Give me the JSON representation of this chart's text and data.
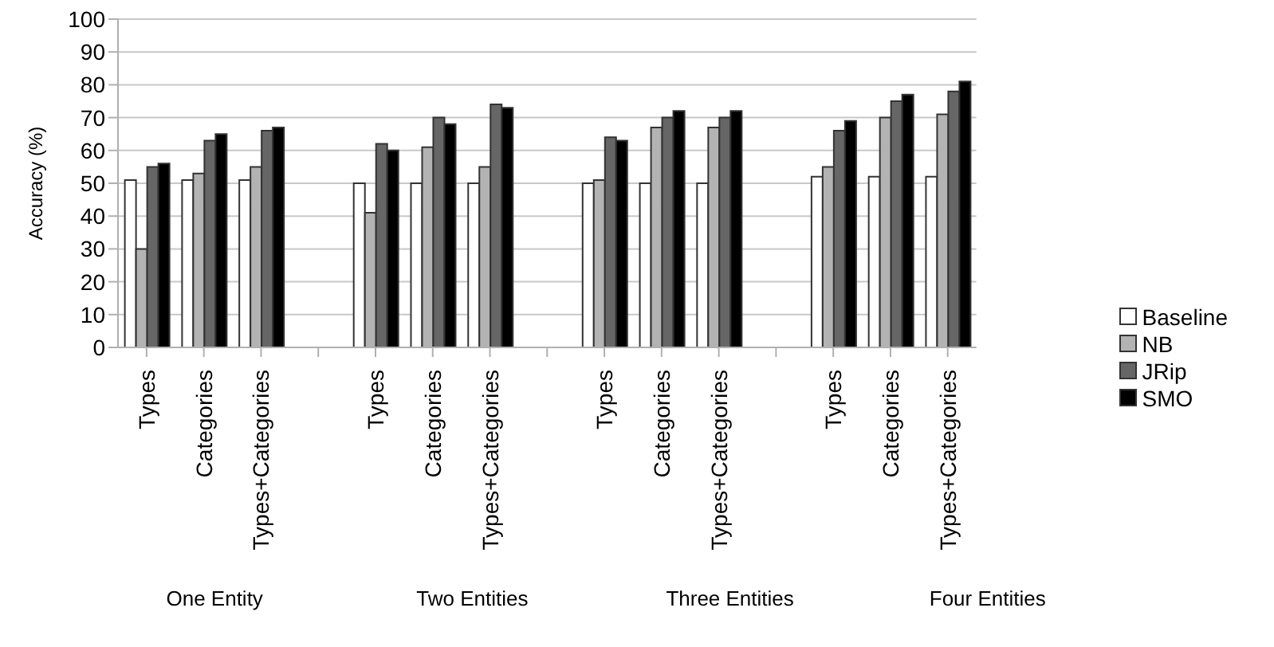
{
  "chart_data": {
    "type": "bar",
    "ylabel": "Accuracy (%)",
    "categories": [
      "Types",
      "Categories",
      "Types+Categories",
      null,
      "Types",
      "Categories",
      "Types+Categories",
      null,
      "Types",
      "Categories",
      "Types+Categories",
      null,
      "Types",
      "Categories",
      "Types+Categories"
    ],
    "series": [
      {
        "name": "Baseline",
        "color": "#ffffff",
        "values": [
          51,
          51,
          51,
          null,
          50,
          50,
          50,
          null,
          50,
          50,
          50,
          null,
          52,
          52,
          52
        ]
      },
      {
        "name": "NB",
        "color": "#b3b3b3",
        "values": [
          30,
          53,
          55,
          null,
          41,
          61,
          55,
          null,
          51,
          67,
          67,
          null,
          55,
          70,
          71
        ]
      },
      {
        "name": "JRip",
        "color": "#666666",
        "values": [
          55,
          63,
          66,
          null,
          62,
          70,
          74,
          null,
          64,
          70,
          70,
          null,
          66,
          75,
          78
        ]
      },
      {
        "name": "SMO",
        "color": "#000000",
        "values": [
          56,
          65,
          67,
          null,
          60,
          68,
          73,
          null,
          63,
          72,
          72,
          null,
          69,
          77,
          81
        ]
      }
    ],
    "ylim": [
      0,
      100
    ],
    "yticks": [
      0,
      10,
      20,
      30,
      40,
      50,
      60,
      70,
      80,
      90,
      100
    ],
    "grid": "y",
    "legend": "right",
    "annotations": [
      "One Entity",
      "Two Entities",
      "Three Entities",
      "Four Entities"
    ]
  }
}
